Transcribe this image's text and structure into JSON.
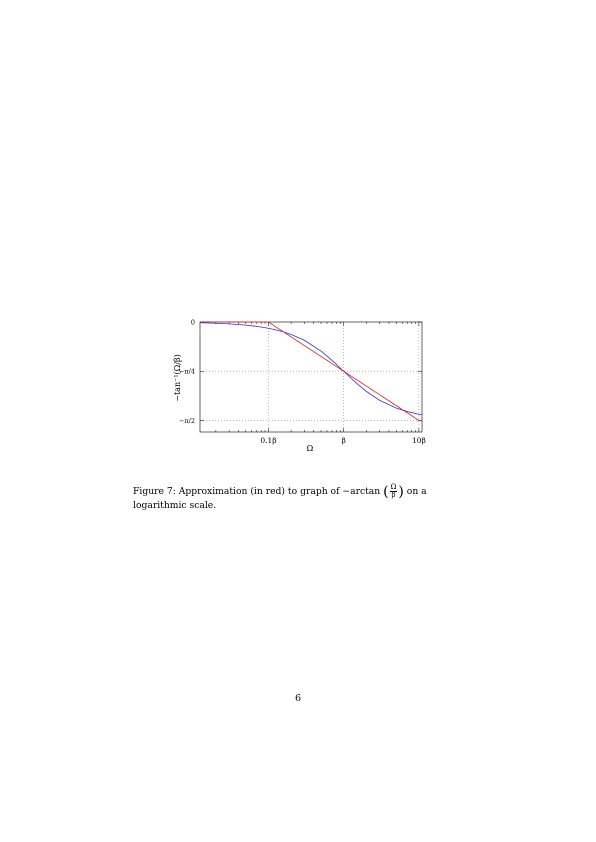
{
  "chart_data": {
    "type": "line",
    "xscale": "log",
    "xlim": [
      0.0123,
      11.0
    ],
    "ylim": [
      -1.755,
      0.0
    ],
    "x_ticks": [
      {
        "value": 0.1,
        "label": "0.1β"
      },
      {
        "value": 1,
        "label": "β"
      },
      {
        "value": 10,
        "label": "10β"
      }
    ],
    "y_ticks": [
      {
        "value": 0,
        "label": "0"
      },
      {
        "value": -0.7854,
        "label": "−π/4"
      },
      {
        "value": -1.5708,
        "label": "−π/2"
      }
    ],
    "xlabel": "Ω",
    "ylabel": "−tan⁻¹(Ω/β)",
    "grid": "dotted, at tick values",
    "series": [
      {
        "color": "#3030e0",
        "x": [
          0.0123,
          0.02,
          0.03,
          0.05,
          0.07,
          0.1,
          0.15,
          0.2,
          0.3,
          0.5,
          0.7,
          1,
          1.5,
          2,
          3,
          5,
          7,
          10,
          11
        ],
        "y": [
          -0.0123,
          -0.02,
          -0.03,
          -0.05,
          -0.0699,
          -0.0997,
          -0.1489,
          -0.1974,
          -0.2915,
          -0.4636,
          -0.6107,
          -0.7854,
          -0.9828,
          -1.1071,
          -1.249,
          -1.3734,
          -1.4289,
          -1.4711,
          -1.4801
        ]
      },
      {
        "color": "#e02020",
        "x": [
          0.0123,
          0.1,
          10,
          11
        ],
        "y": [
          0,
          0,
          -1.5708,
          -1.5708
        ]
      }
    ]
  },
  "caption": {
    "lead": "Figure 7: Approximation (in red) to graph of −arctan",
    "frac_num": "Ω",
    "frac_den": "β",
    "tail": "on a logarithmic scale."
  },
  "page_number": "6"
}
